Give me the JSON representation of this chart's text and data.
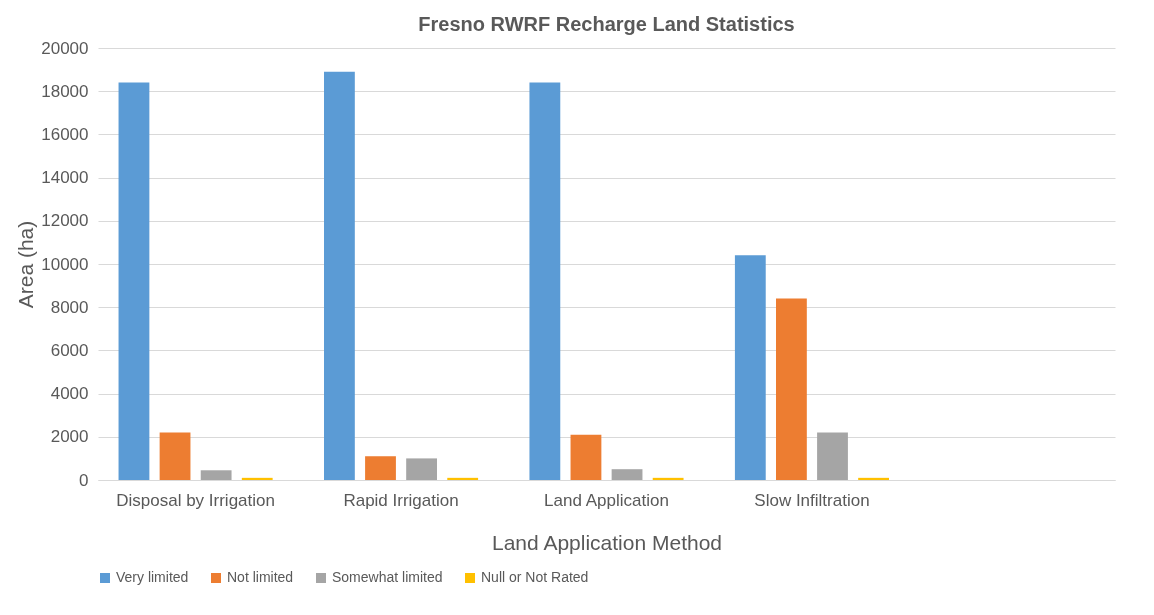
{
  "chart_data": {
    "type": "bar",
    "title": "Fresno RWRF Recharge Land Statistics",
    "xlabel": "Land Application Method",
    "ylabel": "Area (ha)",
    "categories": [
      "Disposal by Irrigation",
      "Rapid Irrigation",
      "Land Application",
      "Slow Infiltration",
      null
    ],
    "series": [
      {
        "name": "Very limited",
        "color": "#5b9bd5",
        "values": [
          18400,
          18900,
          18400,
          10400,
          null
        ]
      },
      {
        "name": "Not limited",
        "color": "#ed7d31",
        "values": [
          2200,
          1100,
          2100,
          8400,
          null
        ]
      },
      {
        "name": "Somewhat limited",
        "color": "#a5a5a5",
        "values": [
          450,
          1000,
          500,
          2200,
          null
        ]
      },
      {
        "name": "Null or Not Rated",
        "color": "#ffc000",
        "values": [
          100,
          100,
          100,
          100,
          null
        ]
      }
    ],
    "ylim": [
      0,
      20000
    ],
    "yticks": [
      0,
      2000,
      4000,
      6000,
      8000,
      10000,
      12000,
      14000,
      16000,
      18000,
      20000
    ],
    "grid": "y",
    "legend": "bottom"
  }
}
